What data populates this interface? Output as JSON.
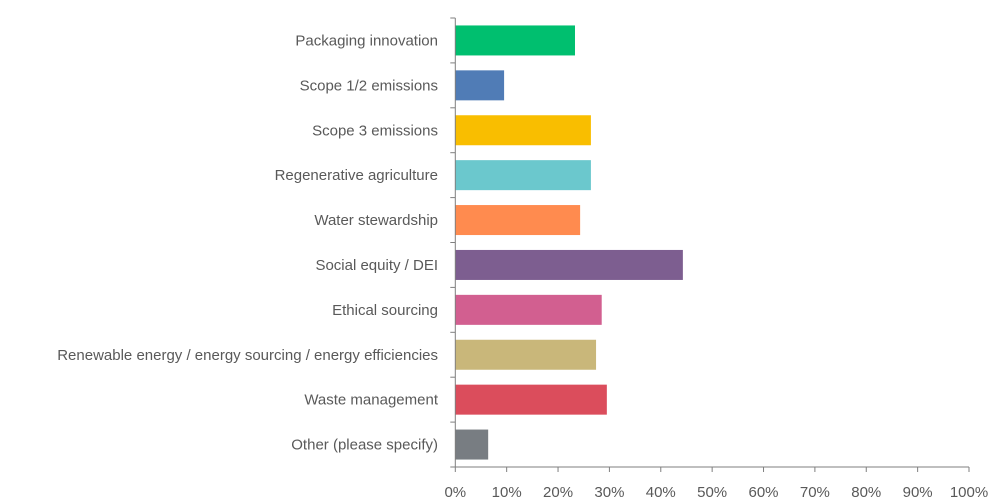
{
  "chart_data": {
    "type": "bar",
    "orientation": "horizontal",
    "categories": [
      "Packaging innovation",
      "Scope 1/2 emissions",
      "Scope 3 emissions",
      "Regenerative agriculture",
      "Water stewardship",
      "Social equity / DEI",
      "Ethical sourcing",
      "Renewable energy / energy sourcing / energy efficiencies",
      "Waste management",
      "Other (please specify)"
    ],
    "values": [
      23.3,
      9.5,
      26.4,
      26.4,
      24.3,
      44.3,
      28.5,
      27.4,
      29.5,
      6.4
    ],
    "colors": [
      "#00BF6F",
      "#507CB6",
      "#F9BE00",
      "#6BC8CD",
      "#FF8B4F",
      "#7D5E90",
      "#D25F90",
      "#C9B77A",
      "#DB4D5C",
      "#787D82"
    ],
    "xlim": [
      0,
      100
    ],
    "xticks": [
      "0%",
      "10%",
      "20%",
      "30%",
      "40%",
      "50%",
      "60%",
      "70%",
      "80%",
      "90%",
      "100%"
    ],
    "title": "",
    "xlabel": "",
    "ylabel": "",
    "grid": false,
    "legend": "none"
  }
}
